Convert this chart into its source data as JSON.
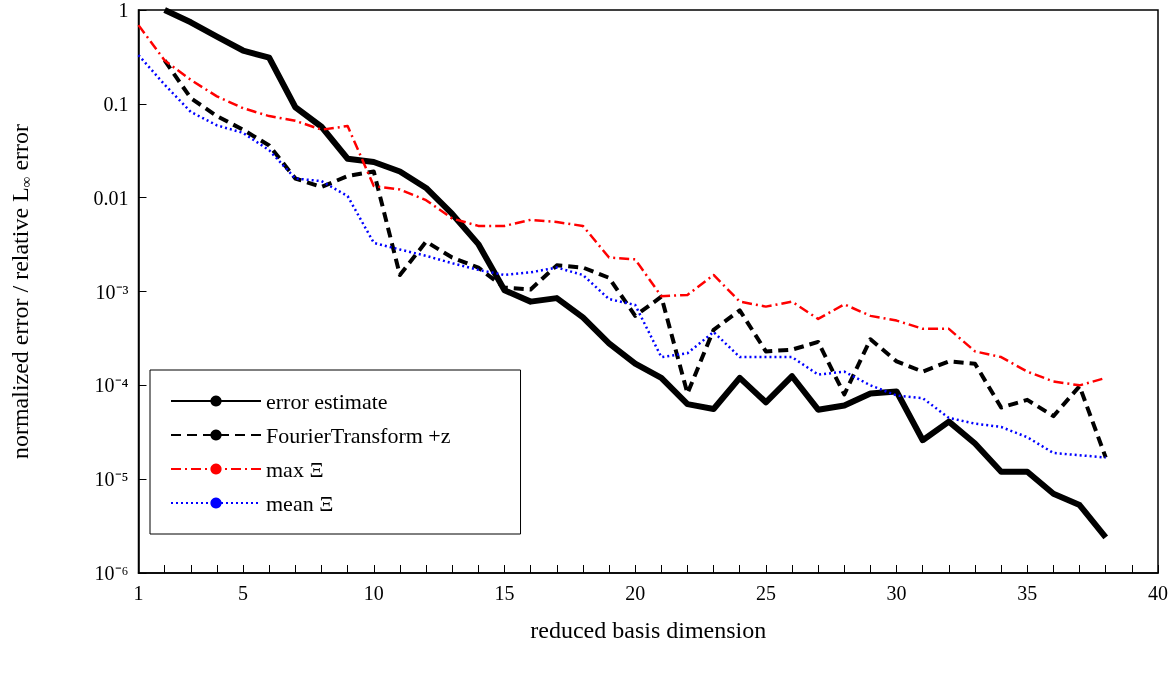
{
  "chart_data": {
    "type": "line",
    "xlabel": "reduced basis dimension",
    "ylabel": "normalized error / relative L$_{∞}$ error",
    "log": "y",
    "grid": false,
    "legend": "bottom left",
    "marker": "none",
    "xlim": [
      1,
      40
    ],
    "xticks": [
      1,
      {
        "value": 2,
        "label": null
      },
      {
        "value": 3,
        "label": null
      },
      {
        "value": 4,
        "label": null
      },
      5,
      {
        "value": 6,
        "label": null
      },
      {
        "value": 7,
        "label": null
      },
      {
        "value": 8,
        "label": null
      },
      {
        "value": 9,
        "label": null
      },
      10,
      {
        "value": 11,
        "label": null
      },
      {
        "value": 12,
        "label": null
      },
      {
        "value": 13,
        "label": null
      },
      {
        "value": 14,
        "label": null
      },
      15,
      {
        "value": 16,
        "label": null
      },
      {
        "value": 17,
        "label": null
      },
      {
        "value": 18,
        "label": null
      },
      {
        "value": 19,
        "label": null
      },
      20,
      {
        "value": 21,
        "label": null
      },
      {
        "value": 22,
        "label": null
      },
      {
        "value": 23,
        "label": null
      },
      {
        "value": 24,
        "label": null
      },
      25,
      {
        "value": 26,
        "label": null
      },
      {
        "value": 27,
        "label": null
      },
      {
        "value": 28,
        "label": null
      },
      {
        "value": 29,
        "label": null
      },
      30,
      {
        "value": 31,
        "label": null
      },
      {
        "value": 32,
        "label": null
      },
      {
        "value": 33,
        "label": null
      },
      {
        "value": 34,
        "label": null
      },
      35,
      {
        "value": 36,
        "label": null
      },
      {
        "value": 37,
        "label": null
      },
      {
        "value": 38,
        "label": null
      },
      {
        "value": 39,
        "label": null
      },
      40
    ],
    "ylim": [
      1e-06,
      1
    ],
    "yticks": [
      {
        "value": 1e-06,
        "label": "10⁻⁶"
      },
      {
        "value": 1e-05,
        "label": "10⁻⁵"
      },
      {
        "value": 0.0001,
        "label": "10⁻⁴"
      },
      {
        "value": 0.001,
        "label": "10⁻³"
      },
      0.01,
      0.1,
      1
    ],
    "x": [
      1,
      2,
      3,
      4,
      5,
      6,
      7,
      8,
      9,
      10,
      11,
      12,
      13,
      14,
      15,
      16,
      17,
      18,
      19,
      20,
      21,
      22,
      23,
      24,
      25,
      26,
      27,
      28,
      29,
      30,
      31,
      32,
      33,
      34,
      35,
      36,
      37,
      38
    ],
    "series": [
      {
        "name": "error estimate",
        "color": "#000000",
        "line_style": "solid",
        "values": [
          null,
          1,
          0.74,
          0.52,
          0.37,
          0.31,
          0.092,
          0.057,
          0.026,
          0.024,
          0.019,
          0.0127,
          0.0067,
          0.0032,
          0.00103,
          0.00078,
          0.00085,
          0.00053,
          0.00028,
          0.00017,
          0.00012,
          6.3e-05,
          5.6e-05,
          0.00012,
          6.6e-05,
          0.000125,
          5.5e-05,
          6.1e-05,
          8.2e-05,
          8.6e-05,
          2.6e-05,
          4.1e-05,
          2.4e-05,
          1.2e-05,
          1.2e-05,
          7e-06,
          5.3e-06,
          2.4e-06
        ]
      },
      {
        "name": "FourierTransform +z",
        "color": "#000000",
        "line_style": "dashed",
        "values": [
          null,
          0.29,
          0.115,
          0.074,
          0.053,
          0.036,
          0.016,
          0.013,
          0.017,
          0.019,
          0.0015,
          0.0034,
          0.0023,
          0.0018,
          0.0011,
          0.00105,
          0.0019,
          0.0018,
          0.0014,
          0.00055,
          0.00088,
          8.2e-05,
          0.00039,
          0.00063,
          0.00023,
          0.00024,
          0.00029,
          8e-05,
          0.00031,
          0.00018,
          0.00014,
          0.00018,
          0.00017,
          5.8e-05,
          7e-05,
          4.7e-05,
          9.8e-05,
          1.7e-05
        ]
      },
      {
        "name": "max Ξ",
        "color": "#ff0000",
        "line_style": "dashdot",
        "values": [
          0.69,
          0.29,
          0.18,
          0.12,
          0.09,
          0.074,
          0.066,
          0.053,
          0.058,
          0.0133,
          0.0122,
          0.0094,
          0.006,
          0.005,
          0.005,
          0.0058,
          0.0055,
          0.005,
          0.0023,
          0.0022,
          0.00089,
          0.00092,
          0.0015,
          0.00078,
          0.00069,
          0.00078,
          0.00051,
          0.00073,
          0.00055,
          0.00049,
          0.0004,
          0.0004,
          0.00023,
          0.0002,
          0.00014,
          0.00011,
          0.0001,
          0.00012
        ]
      },
      {
        "name": "mean Ξ",
        "color": "#0000ff",
        "line_style": "dotted",
        "values": [
          0.33,
          0.16,
          0.082,
          0.059,
          0.049,
          0.032,
          0.016,
          0.015,
          0.0104,
          0.0033,
          0.0028,
          0.0024,
          0.002,
          0.0017,
          0.0015,
          0.0016,
          0.0018,
          0.0015,
          0.00083,
          0.00072,
          0.0002,
          0.00022,
          0.00037,
          0.0002,
          0.0002,
          0.0002,
          0.00013,
          0.00014,
          0.0001,
          7.8e-05,
          7.3e-05,
          4.5e-05,
          3.9e-05,
          3.6e-05,
          2.8e-05,
          1.9e-05,
          1.8e-05,
          1.7e-05
        ]
      }
    ]
  }
}
